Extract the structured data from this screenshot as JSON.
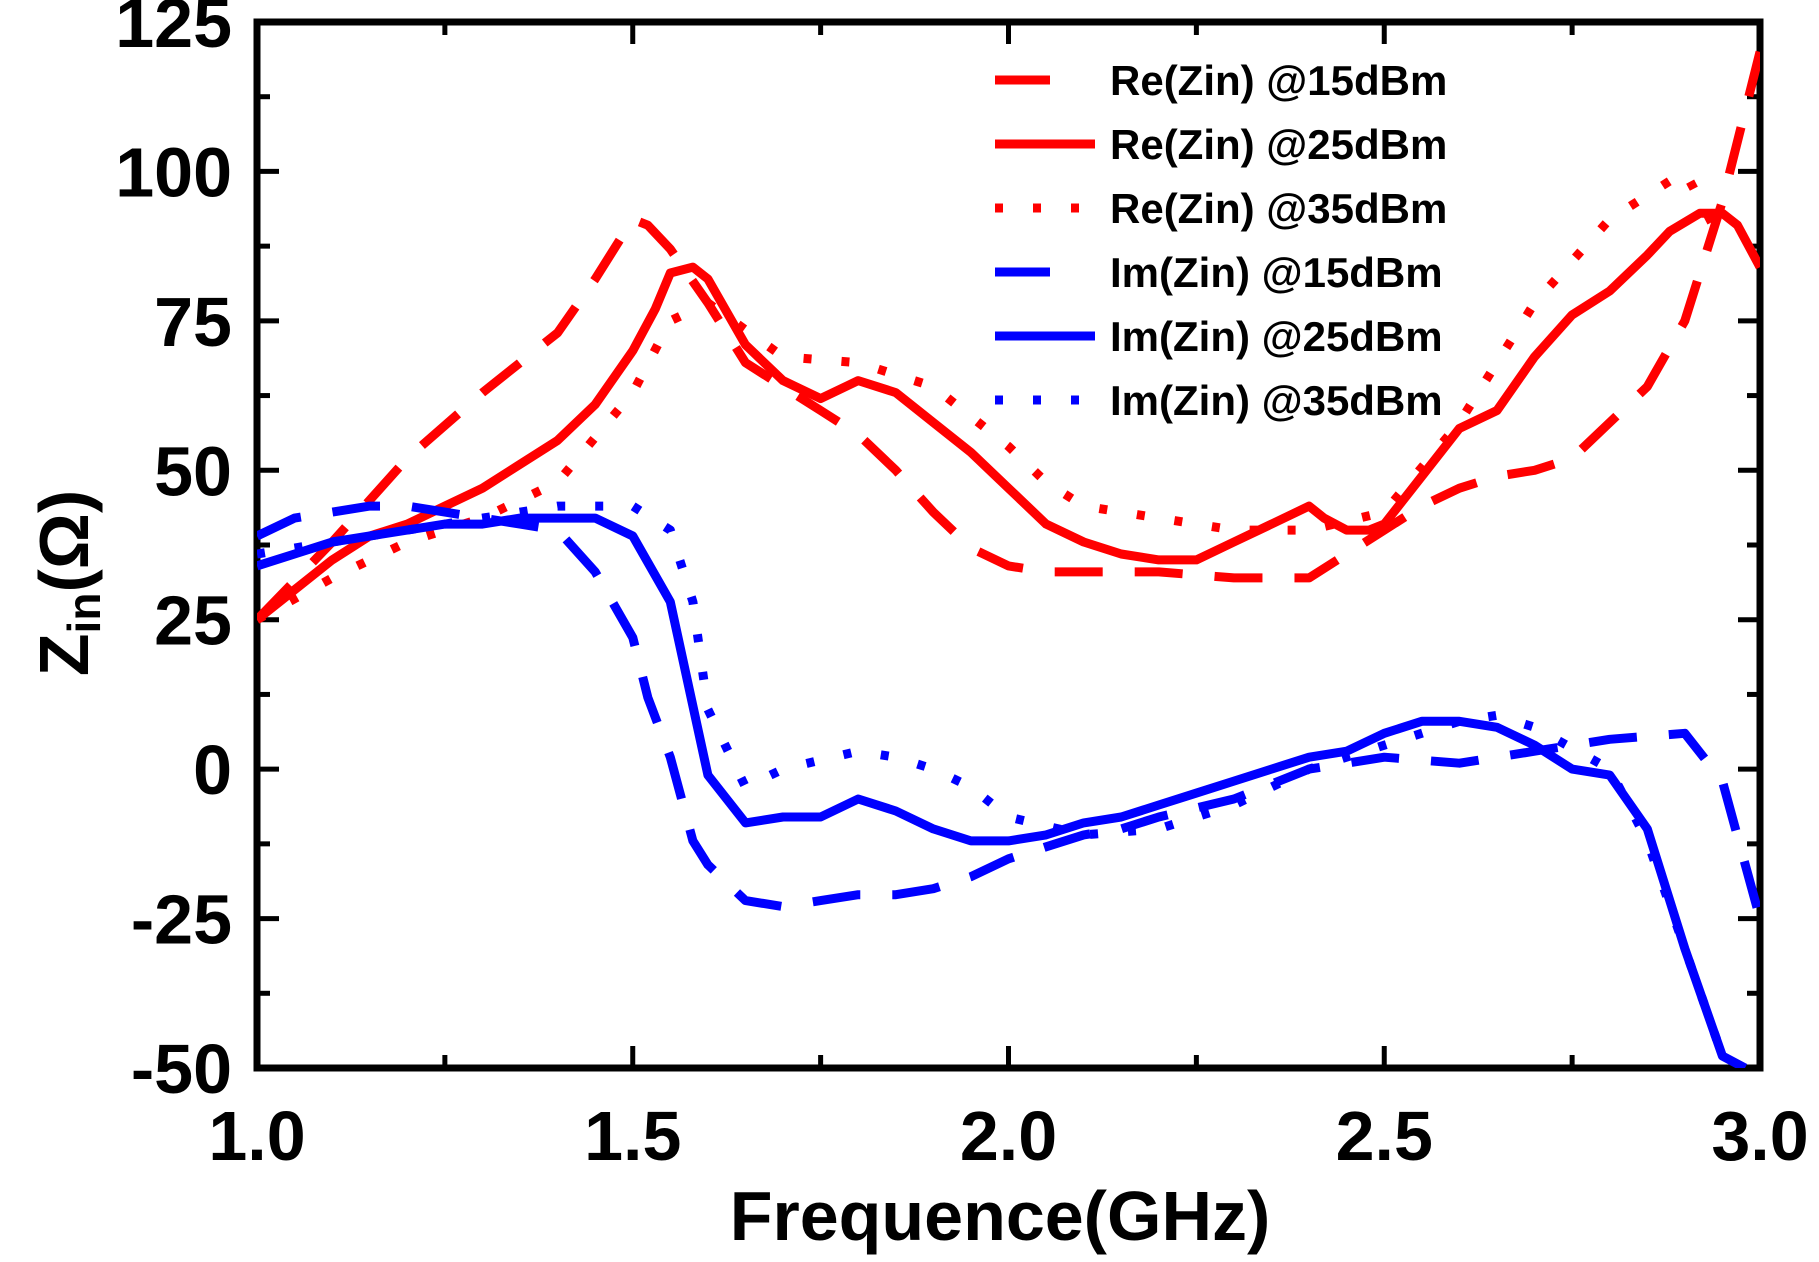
{
  "chart_data": {
    "type": "line",
    "title": "",
    "xlabel": "Frequence(GHz)",
    "ylabel": {
      "main": "Z",
      "sub": "in",
      "unit": "(Ω)"
    },
    "xlim": [
      1.0,
      3.0
    ],
    "ylim": [
      -50,
      125
    ],
    "x_ticks": [
      1.0,
      1.5,
      2.0,
      2.5,
      3.0
    ],
    "x_tick_labels": [
      "1.0",
      "1.5",
      "2.0",
      "2.5",
      "3.0"
    ],
    "y_ticks": [
      -50,
      -25,
      0,
      25,
      50,
      75,
      100,
      125
    ],
    "y_tick_labels": [
      "-50",
      "-25",
      "0",
      "25",
      "50",
      "75",
      "100",
      "125"
    ],
    "grid": false,
    "legend_position": "top-right",
    "series": [
      {
        "name": "Re(Zin) @15dBm",
        "color": "#ff0000",
        "style": "dashed",
        "x": [
          1.0,
          1.1,
          1.2,
          1.3,
          1.4,
          1.45,
          1.5,
          1.52,
          1.55,
          1.6,
          1.65,
          1.7,
          1.75,
          1.8,
          1.85,
          1.9,
          1.95,
          2.0,
          2.05,
          2.1,
          2.2,
          2.3,
          2.4,
          2.45,
          2.5,
          2.55,
          2.6,
          2.65,
          2.7,
          2.75,
          2.8,
          2.85,
          2.9,
          2.95,
          3.0
        ],
        "y": [
          25,
          38,
          52,
          63,
          73,
          82,
          92,
          91,
          87,
          78,
          68,
          64,
          60,
          56,
          50,
          43,
          37,
          34,
          33,
          33,
          33,
          32,
          32,
          36,
          40,
          44,
          47,
          49,
          50,
          52,
          58,
          64,
          75,
          95,
          120
        ]
      },
      {
        "name": "Re(Zin) @25dBm",
        "color": "#ff0000",
        "style": "solid",
        "x": [
          1.0,
          1.05,
          1.1,
          1.15,
          1.2,
          1.25,
          1.3,
          1.35,
          1.4,
          1.45,
          1.5,
          1.53,
          1.55,
          1.58,
          1.6,
          1.65,
          1.7,
          1.75,
          1.8,
          1.85,
          1.9,
          1.95,
          2.0,
          2.05,
          2.1,
          2.15,
          2.2,
          2.25,
          2.3,
          2.35,
          2.4,
          2.42,
          2.45,
          2.48,
          2.5,
          2.55,
          2.6,
          2.65,
          2.7,
          2.75,
          2.8,
          2.85,
          2.88,
          2.92,
          2.95,
          2.97,
          3.0
        ],
        "y": [
          25,
          30,
          35,
          39,
          41,
          44,
          47,
          51,
          55,
          61,
          70,
          77,
          83,
          84,
          82,
          71,
          65,
          62,
          65,
          63,
          58,
          53,
          47,
          41,
          38,
          36,
          35,
          35,
          38,
          41,
          44,
          42,
          40,
          40,
          41,
          49,
          57,
          60,
          69,
          76,
          80,
          86,
          90,
          93,
          93,
          91,
          84
        ]
      },
      {
        "name": "Re(Zin) @35dBm",
        "color": "#ff0000",
        "style": "dotted",
        "x": [
          1.0,
          1.1,
          1.2,
          1.3,
          1.4,
          1.5,
          1.55,
          1.6,
          1.7,
          1.8,
          1.85,
          1.9,
          1.95,
          2.0,
          2.05,
          2.1,
          2.15,
          2.2,
          2.3,
          2.4,
          2.5,
          2.6,
          2.7,
          2.75,
          2.8,
          2.85,
          2.9,
          2.95
        ],
        "y": [
          25,
          32,
          38,
          42,
          48,
          63,
          75,
          78,
          69,
          68,
          66,
          64,
          59,
          54,
          48,
          44,
          43,
          42,
          40,
          40,
          43,
          58,
          78,
          85,
          92,
          96,
          100,
          88
        ]
      },
      {
        "name": "Im(Zin) @15dBm",
        "color": "#0000ff",
        "style": "dashed",
        "x": [
          1.0,
          1.05,
          1.1,
          1.15,
          1.2,
          1.25,
          1.3,
          1.35,
          1.4,
          1.45,
          1.5,
          1.52,
          1.55,
          1.58,
          1.6,
          1.65,
          1.7,
          1.75,
          1.8,
          1.85,
          1.9,
          1.95,
          2.0,
          2.05,
          2.1,
          2.15,
          2.2,
          2.3,
          2.4,
          2.5,
          2.6,
          2.7,
          2.8,
          2.9,
          2.95,
          3.0
        ],
        "y": [
          39,
          42,
          43,
          44,
          44,
          43,
          42,
          41,
          40,
          33,
          22,
          12,
          2,
          -12,
          -16,
          -22,
          -23,
          -22,
          -21,
          -21,
          -20,
          -18,
          -15,
          -13,
          -11,
          -10,
          -8,
          -5,
          0,
          2,
          1,
          3,
          5,
          6,
          -2,
          -25
        ]
      },
      {
        "name": "Im(Zin) @25dBm",
        "color": "#0000ff",
        "style": "solid",
        "x": [
          1.0,
          1.05,
          1.1,
          1.15,
          1.2,
          1.25,
          1.3,
          1.35,
          1.4,
          1.45,
          1.5,
          1.55,
          1.6,
          1.65,
          1.7,
          1.75,
          1.8,
          1.85,
          1.9,
          1.95,
          2.0,
          2.05,
          2.1,
          2.15,
          2.2,
          2.25,
          2.3,
          2.35,
          2.4,
          2.45,
          2.5,
          2.55,
          2.6,
          2.65,
          2.7,
          2.75,
          2.8,
          2.85,
          2.9,
          2.95,
          2.98
        ],
        "y": [
          34,
          36,
          38,
          39,
          40,
          41,
          41,
          42,
          42,
          42,
          39,
          28,
          -1,
          -9,
          -8,
          -8,
          -5,
          -7,
          -10,
          -12,
          -12,
          -11,
          -9,
          -8,
          -6,
          -4,
          -2,
          0,
          2,
          3,
          6,
          8,
          8,
          7,
          4,
          0,
          -1,
          -10,
          -30,
          -48,
          -50
        ]
      },
      {
        "name": "Im(Zin) @35dBm",
        "color": "#0000ff",
        "style": "dotted",
        "x": [
          1.0,
          1.1,
          1.2,
          1.3,
          1.4,
          1.5,
          1.55,
          1.58,
          1.6,
          1.65,
          1.7,
          1.8,
          1.85,
          1.9,
          1.95,
          2.0,
          2.1,
          2.2,
          2.3,
          2.4,
          2.5,
          2.6,
          2.65,
          2.7,
          2.8,
          2.85,
          2.9,
          2.95
        ],
        "y": [
          36,
          38,
          40,
          42,
          44,
          44,
          40,
          28,
          10,
          -3,
          0,
          3,
          2,
          0,
          -3,
          -8,
          -11,
          -10,
          -6,
          0,
          4,
          8,
          9,
          7,
          0,
          -12,
          -30,
          -48
        ]
      }
    ]
  }
}
